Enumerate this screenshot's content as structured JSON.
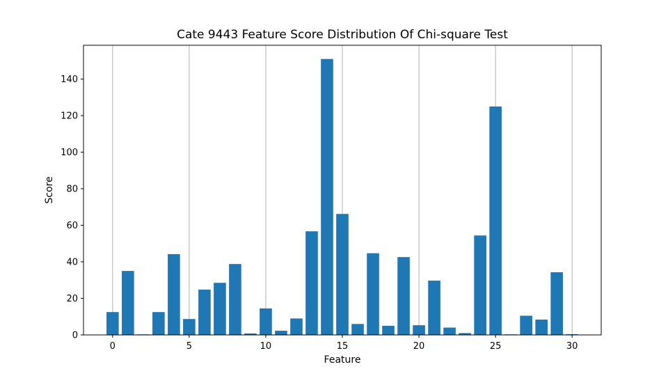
{
  "chart_data": {
    "type": "bar",
    "title": "Cate 9443 Feature Score Distribution Of Chi-square Test",
    "xlabel": "Feature",
    "ylabel": "Score",
    "x": [
      0,
      1,
      2,
      3,
      4,
      5,
      6,
      7,
      8,
      9,
      10,
      11,
      12,
      13,
      14,
      15,
      16,
      17,
      18,
      19,
      20,
      21,
      22,
      23,
      24,
      25,
      26,
      27,
      28,
      29,
      30
    ],
    "values": [
      12.5,
      35,
      0.3,
      12.5,
      44.2,
      8.7,
      24.8,
      28.5,
      38.8,
      0.8,
      14.5,
      2.3,
      9.0,
      56.7,
      151,
      66.2,
      6.0,
      44.7,
      5.0,
      42.6,
      5.3,
      29.7,
      4.0,
      1.0,
      54.4,
      125,
      0.3,
      10.5,
      8.4,
      34.3,
      0.4
    ],
    "xlim": [
      -1.9,
      31.9
    ],
    "ylim": [
      0,
      158.5
    ],
    "xticks": [
      0,
      5,
      10,
      15,
      20,
      25,
      30
    ],
    "yticks": [
      0,
      20,
      40,
      60,
      80,
      100,
      120,
      140
    ],
    "grid": "x-axis vertical lines",
    "bar_color": "#1f77b4",
    "grid_color": "#b0b0b0"
  }
}
